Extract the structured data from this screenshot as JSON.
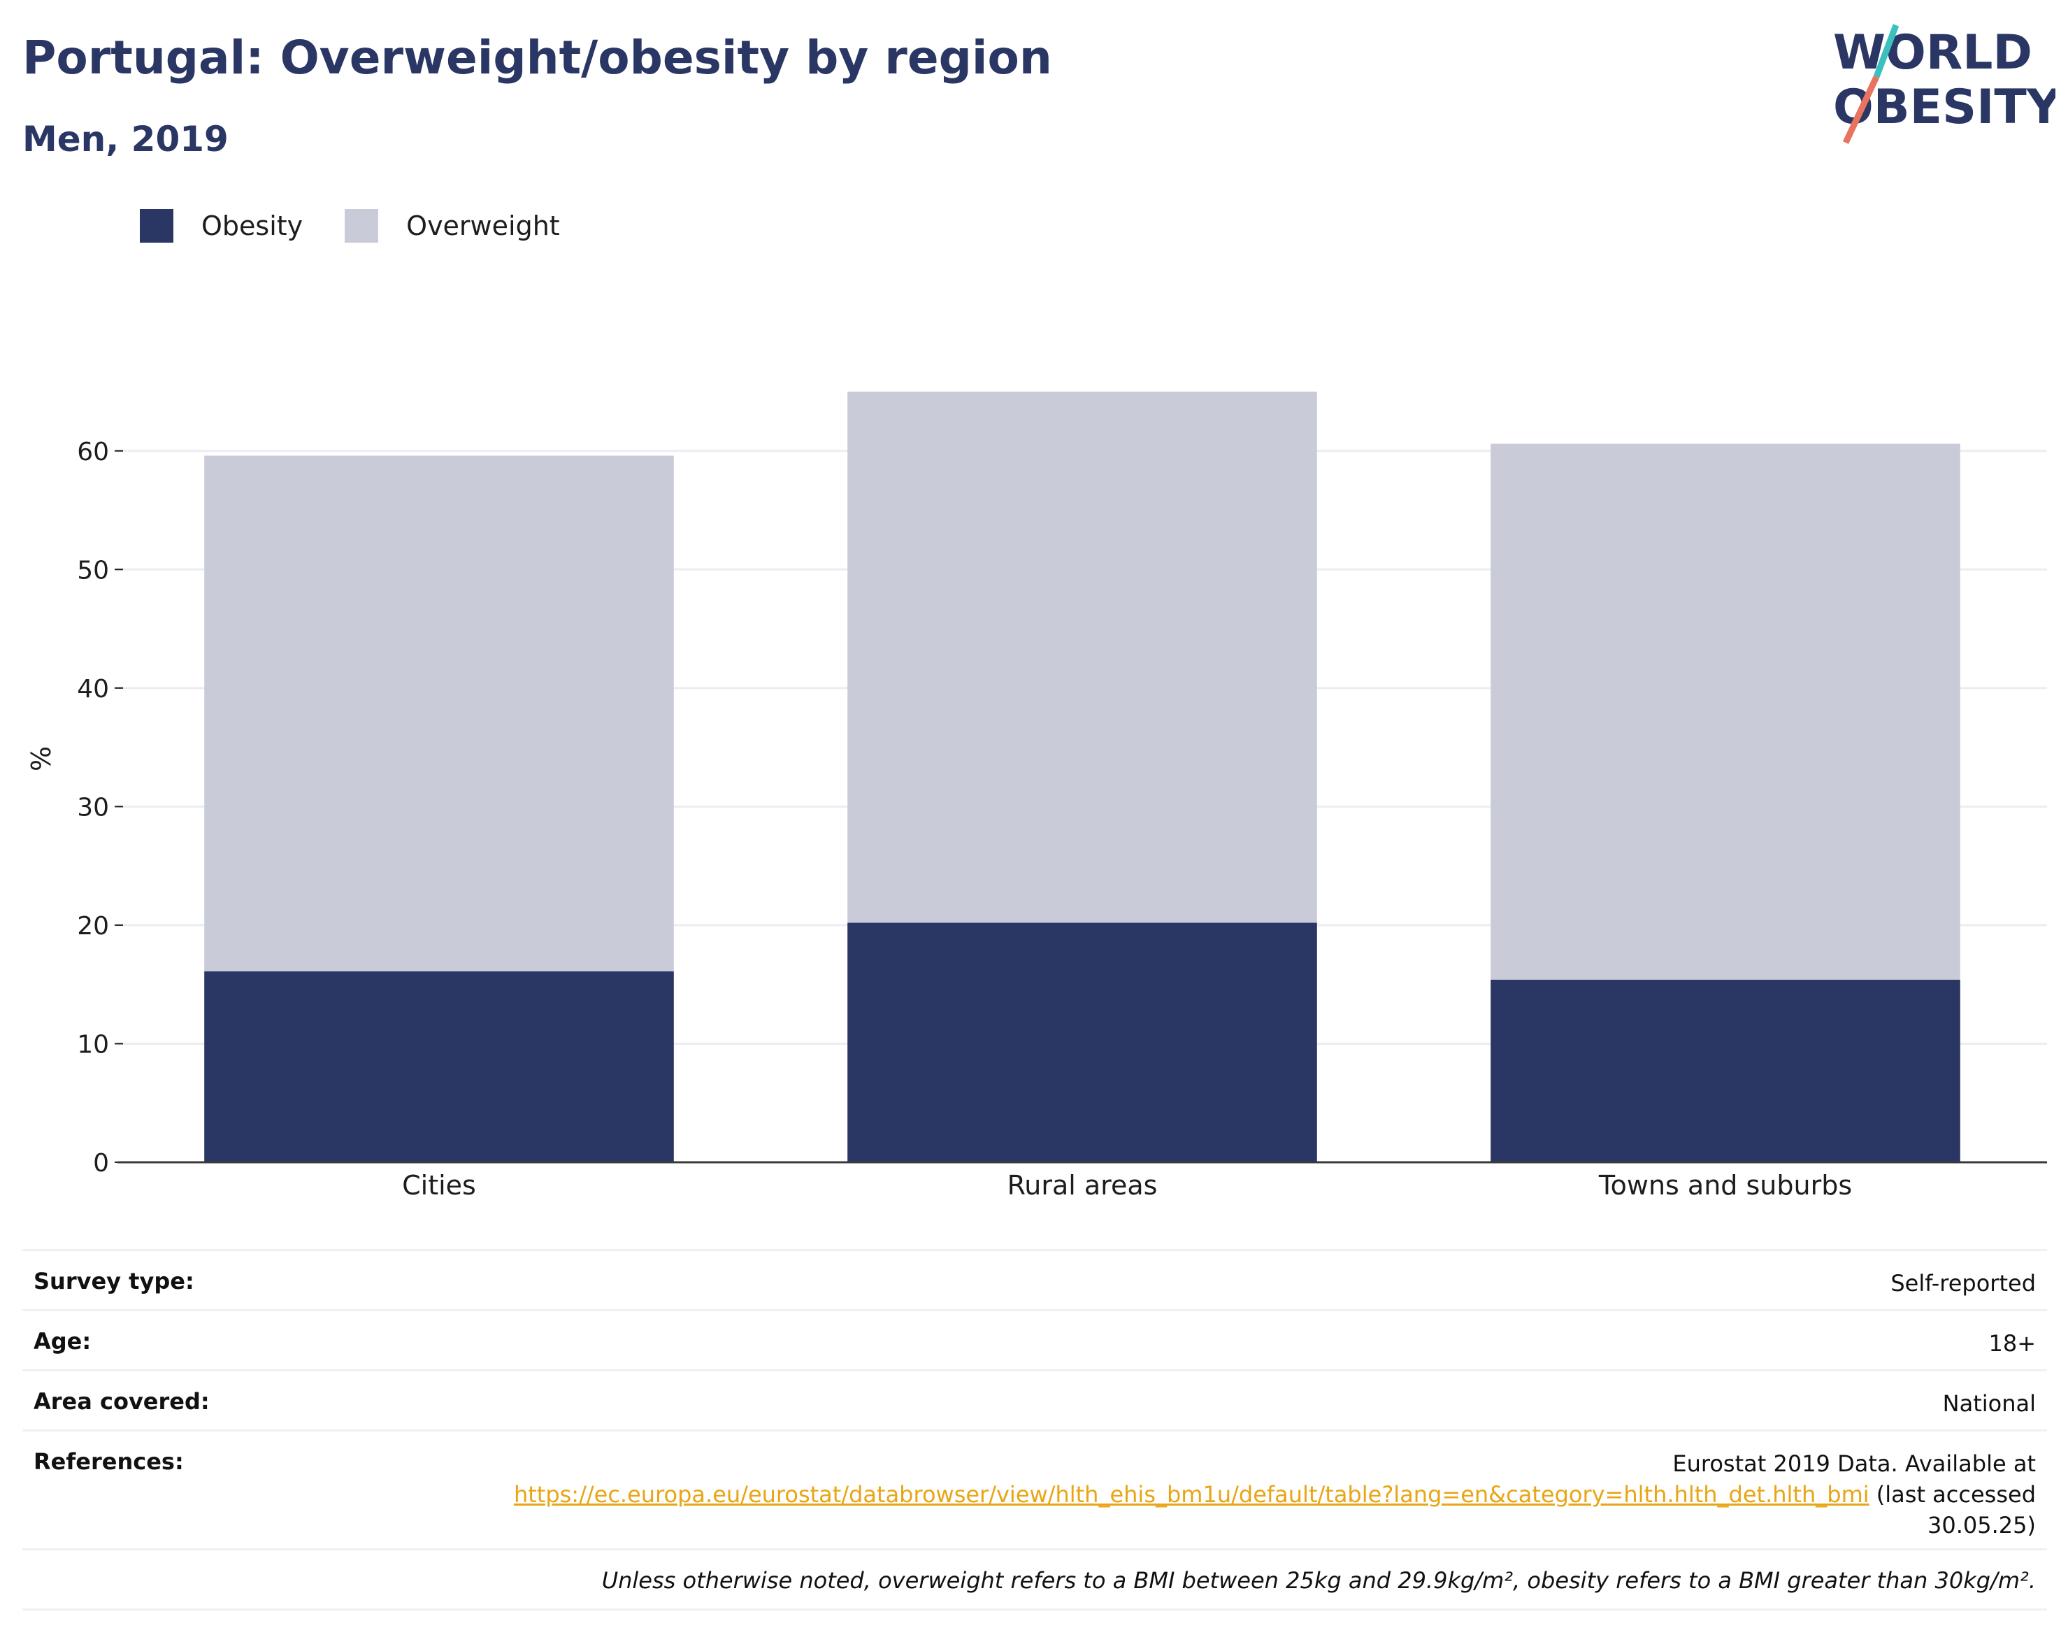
{
  "header": {
    "title": "Portugal: Overweight/obesity by region",
    "subtitle": "Men, 2019",
    "logo_line1": "WORLD",
    "logo_line2": "OBESITY"
  },
  "legend": [
    {
      "label": "Obesity",
      "color": "#2a3663"
    },
    {
      "label": "Overweight",
      "color": "#c9ccd8"
    }
  ],
  "chart_data": {
    "type": "bar",
    "stacked": true,
    "categories": [
      "Cities",
      "Rural areas",
      "Towns and suburbs"
    ],
    "series": [
      {
        "name": "Obesity",
        "values": [
          16.1,
          20.2,
          15.4
        ],
        "color": "#2a3663"
      },
      {
        "name": "Overweight",
        "values": [
          43.5,
          44.8,
          45.2
        ],
        "color": "#c9ccd8"
      }
    ],
    "ylabel": "%",
    "ylim": [
      0,
      65
    ],
    "yticks": [
      0,
      10,
      20,
      30,
      40,
      50,
      60
    ],
    "grid": true,
    "legend_position": "top-left"
  },
  "info": {
    "survey_type_label": "Survey type:",
    "survey_type_value": "Self-reported",
    "age_label": "Age:",
    "age_value": "18+",
    "area_label": "Area covered:",
    "area_value": "National",
    "references_label": "References:",
    "references_line1": "Eurostat 2019 Data. Available at",
    "references_link": "https://ec.europa.eu/eurostat/databrowser/view/hlth_ehis_bm1u/default/table?lang=en&category=hlth.hlth_det.hlth_bmi",
    "references_suffix": " (last accessed",
    "references_line3": "30.05.25)",
    "footnote": "Unless otherwise noted, overweight refers to a BMI between 25kg and 29.9kg/m², obesity refers to a BMI greater than 30kg/m²."
  }
}
